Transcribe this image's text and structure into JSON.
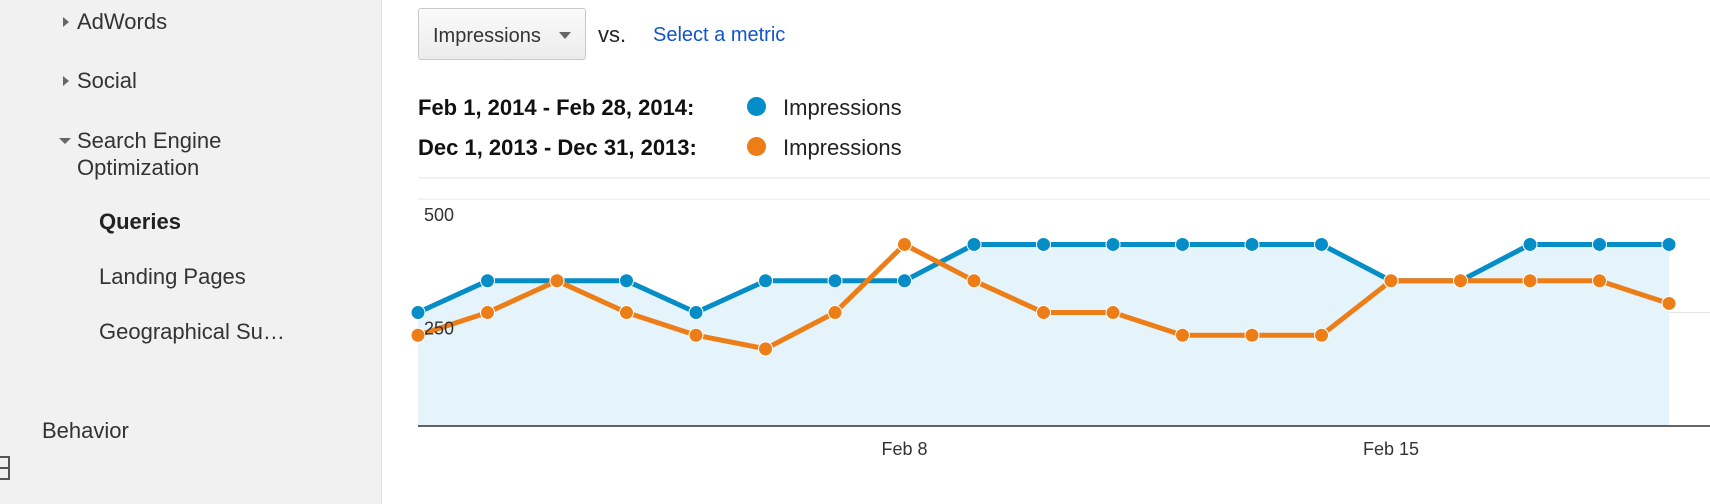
{
  "sidebar": {
    "items": [
      {
        "label": "AdWords",
        "expanded": false
      },
      {
        "label": "Social",
        "expanded": false
      },
      {
        "label_line1": "Search Engine",
        "label_line2": "Optimization",
        "expanded": true
      }
    ],
    "sub_items": [
      {
        "label": "Queries",
        "active": true
      },
      {
        "label": "Landing Pages",
        "active": false
      },
      {
        "label": "Geographical Su…",
        "active": false
      }
    ],
    "section": {
      "label": "Behavior",
      "icon": "behavior-icon"
    }
  },
  "metric_selector": {
    "selected": "Impressions"
  },
  "vs_label": "vs.",
  "compare_link": "Select a metric",
  "legend": [
    {
      "range": "Feb 1, 2014 - Feb 28, 2014:",
      "name": "Impressions",
      "color": "#058dc7"
    },
    {
      "range": "Dec 1, 2013 - Dec 31, 2013:",
      "name": "Impressions",
      "color": "#ed7e17"
    }
  ],
  "chart_data": {
    "type": "line",
    "y_ticks": [
      250,
      500
    ],
    "y_tick_labels": [
      "250",
      "500"
    ],
    "ylim": [
      0,
      520
    ],
    "x_tick_labels": [
      {
        "label": "Feb 8",
        "index": 7
      },
      {
        "label": "Feb 15",
        "index": 14
      }
    ],
    "grid": true,
    "series": [
      {
        "name": "Impressions",
        "color": "#058dc7",
        "area": true,
        "values": [
          250,
          320,
          320,
          320,
          250,
          320,
          320,
          320,
          400,
          400,
          400,
          400,
          400,
          400,
          320,
          320,
          400,
          400,
          400
        ]
      },
      {
        "name": "Impressions",
        "color": "#ed7e17",
        "area": false,
        "values": [
          200,
          250,
          320,
          250,
          200,
          170,
          250,
          400,
          320,
          250,
          250,
          200,
          200,
          200,
          320,
          320,
          320,
          320,
          270
        ]
      }
    ]
  }
}
